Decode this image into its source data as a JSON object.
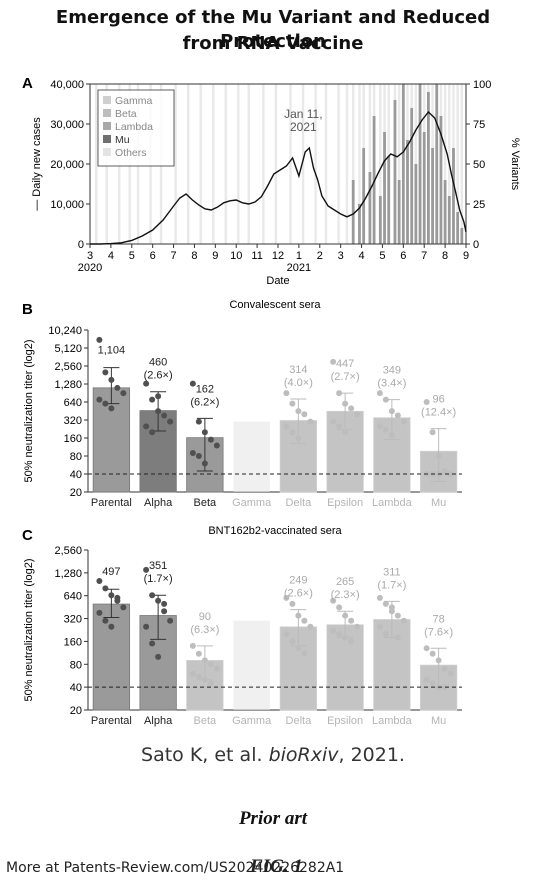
{
  "header": {
    "title_line1": "Emergence of the Mu Variant and Reduced Protection",
    "title_line2": "from RNA Vaccine"
  },
  "colors": {
    "line": "#111111",
    "bar_dark": "#7d7d7d",
    "bar_mid": "#9a9a9a",
    "bar_light": "#c4c4c4",
    "bar_faint": "#e6e6e6",
    "dot_dark": "#505050",
    "band": "#8c8c8c",
    "band_light": "#d7d7d7"
  },
  "chart_data": [
    {
      "panel_label": "A",
      "type": "line",
      "xlabel": "Date",
      "ylabel_left": "— Daily new cases",
      "ylabel_right": "% Variants",
      "yticks_left": [
        "0",
        "10,000",
        "20,000",
        "30,000",
        "40,000"
      ],
      "yticks_right": [
        "0",
        "25",
        "50",
        "75",
        "100"
      ],
      "ylim": [
        0,
        40000
      ],
      "ylim_right": [
        0,
        100
      ],
      "xticks": [
        "3",
        "4",
        "5",
        "6",
        "7",
        "8",
        "9",
        "10",
        "11",
        "12",
        "1",
        "2",
        "3",
        "4",
        "5",
        "6",
        "7",
        "8",
        "9"
      ],
      "year_labels": [
        {
          "label": "2020",
          "at_tick": 0
        },
        {
          "label": "2021",
          "at_tick": 10
        }
      ],
      "legend": [
        "Gamma",
        "Beta",
        "Lambda",
        "Mu",
        "Others"
      ],
      "legend_colors": [
        "#cfcfcf",
        "#bdbdbd",
        "#a8a8a8",
        "#6f6f6f",
        "#e3e3e3"
      ],
      "annotation": {
        "text_line1": "Jan 11,",
        "text_line2": "2021",
        "x": 10.5,
        "y": 24000
      },
      "series": [
        {
          "name": "Daily new cases",
          "x": [
            0,
            0.5,
            1,
            1.5,
            2,
            2.5,
            3,
            3.5,
            4,
            4.3,
            4.6,
            4.9,
            5.2,
            5.5,
            5.8,
            6.1,
            6.4,
            6.7,
            7,
            7.3,
            7.6,
            7.9,
            8.2,
            8.5,
            8.8,
            9.1,
            9.4,
            9.7,
            10,
            10.3,
            10.5,
            10.7,
            10.9,
            11.1,
            11.4,
            11.7,
            12,
            12.3,
            12.6,
            12.9,
            13.2,
            13.5,
            13.8,
            14.1,
            14.4,
            14.7,
            15,
            15.3,
            15.6,
            15.9,
            16.2,
            16.5,
            16.8,
            17.1,
            17.3,
            17.5,
            17.7,
            17.9,
            18
          ],
          "values": [
            0,
            0,
            100,
            300,
            900,
            2000,
            3500,
            6000,
            9500,
            11500,
            12500,
            11000,
            9800,
            8800,
            8500,
            9200,
            10300,
            10800,
            11000,
            10300,
            10000,
            10500,
            11800,
            14500,
            17500,
            18500,
            19500,
            21500,
            17000,
            23000,
            24000,
            19000,
            16000,
            12000,
            9500,
            8500,
            7500,
            6800,
            7500,
            9000,
            11500,
            14500,
            17800,
            20800,
            22500,
            21800,
            23000,
            25500,
            28500,
            31000,
            33000,
            31500,
            27500,
            22500,
            17500,
            13000,
            8500,
            5500,
            3000
          ]
        }
      ],
      "band_positions": [
        0.3,
        0.8,
        1.4,
        1.9,
        2.3,
        2.9,
        3.4,
        4.1,
        4.7,
        5.3,
        5.9,
        6.5,
        7.1,
        7.6,
        8.3,
        8.9,
        9.6,
        10.2,
        10.8,
        11.3,
        11.9,
        12.3,
        12.6,
        12.9,
        13.1,
        13.4,
        13.6,
        13.9,
        14.1,
        14.3,
        14.6,
        14.8,
        15.0,
        15.2,
        15.4,
        15.6,
        15.8,
        16.0,
        16.2,
        16.4,
        16.6,
        16.8,
        17.0,
        17.2,
        17.4,
        17.6,
        17.8
      ],
      "variant_share": [
        0,
        0,
        0,
        0,
        0,
        0,
        0,
        0,
        0,
        0,
        0,
        0,
        0,
        0,
        0,
        0,
        0,
        0,
        0,
        0,
        0,
        0,
        40,
        25,
        60,
        45,
        80,
        30,
        70,
        55,
        90,
        40,
        100,
        65,
        85,
        50,
        100,
        70,
        95,
        60,
        100,
        80,
        40,
        30,
        60,
        20,
        10
      ]
    },
    {
      "panel_label": "B",
      "type": "bar",
      "title": "Convalescent sera",
      "ylabel": "50% neutralization titer (log2)",
      "log_base": 2,
      "yticks": [
        "20",
        "40",
        "80",
        "160",
        "320",
        "640",
        "1,280",
        "2,560",
        "5,120",
        "10,240"
      ],
      "ylim": [
        20,
        10240
      ],
      "threshold": 40,
      "categories": [
        "Parental",
        "Alpha",
        "Beta",
        "Gamma",
        "Delta",
        "Epsilon",
        "Lambda",
        "Mu"
      ],
      "values": [
        1104,
        460,
        162,
        null,
        314,
        447,
        349,
        96
      ],
      "value_labels": [
        "1,104",
        "460",
        "162",
        "",
        "314",
        "447",
        "349",
        "96"
      ],
      "fold_labels": [
        "",
        "(2.6×)",
        "(6.2×)",
        "",
        "(4.0×)",
        "(2.7×)",
        "(3.4×)",
        "(12.4×)"
      ],
      "error_low": [
        600,
        210,
        45,
        null,
        130,
        220,
        150,
        30
      ],
      "error_high": [
        2400,
        950,
        340,
        null,
        720,
        900,
        700,
        230
      ],
      "shades": [
        "mid",
        "dark",
        "mid",
        "faint",
        "light",
        "light",
        "light",
        "light"
      ],
      "points": [
        [
          7000,
          2000,
          1500,
          1100,
          900,
          700,
          600,
          500
        ],
        [
          1300,
          700,
          450,
          380,
          300,
          250,
          200,
          800
        ],
        [
          1300,
          300,
          200,
          150,
          120,
          90,
          80,
          60
        ],
        [],
        [
          900,
          600,
          450,
          400,
          300,
          250,
          200,
          160
        ],
        [
          3000,
          900,
          600,
          500,
          400,
          300,
          250,
          200
        ],
        [
          900,
          700,
          450,
          380,
          300,
          250,
          220,
          180
        ],
        [
          640,
          200,
          80,
          45,
          40,
          40,
          40,
          40
        ]
      ]
    },
    {
      "panel_label": "C",
      "type": "bar",
      "title": "BNT162b2-vaccinated sera",
      "ylabel": "50% neutralization titer (log2)",
      "log_base": 2,
      "yticks": [
        "20",
        "40",
        "80",
        "160",
        "320",
        "640",
        "1,280",
        "2,560"
      ],
      "ylim": [
        20,
        2560
      ],
      "threshold": 40,
      "categories": [
        "Parental",
        "Alpha",
        "Beta",
        "Gamma",
        "Delta",
        "Epsilon",
        "Lambda",
        "Mu"
      ],
      "values": [
        497,
        351,
        90,
        null,
        249,
        265,
        311,
        78
      ],
      "value_labels": [
        "497",
        "351",
        "90",
        "",
        "249",
        "265",
        "311",
        "78"
      ],
      "fold_labels": [
        "",
        "(1.7×)",
        "(6.3×)",
        "",
        "(2.6×)",
        "(2.3×)",
        "(1.7×)",
        "(7.6×)"
      ],
      "error_low": [
        330,
        170,
        50,
        null,
        140,
        180,
        180,
        40
      ],
      "error_high": [
        780,
        650,
        140,
        null,
        420,
        400,
        540,
        130
      ],
      "shades": [
        "mid",
        "mid",
        "light",
        "faint",
        "light",
        "light",
        "light",
        "light"
      ],
      "points": [
        [
          1000,
          800,
          650,
          550,
          450,
          380,
          300,
          250,
          600
        ],
        [
          1400,
          650,
          550,
          400,
          300,
          250,
          150,
          100,
          500
        ],
        [
          140,
          110,
          90,
          80,
          70,
          60,
          55,
          50,
          45
        ],
        [],
        [
          600,
          500,
          350,
          300,
          250,
          200,
          160,
          130,
          110
        ],
        [
          550,
          450,
          350,
          300,
          250,
          220,
          200,
          180,
          160
        ],
        [
          600,
          500,
          400,
          350,
          300,
          250,
          200,
          450,
          180
        ],
        [
          130,
          110,
          90,
          70,
          60,
          50,
          45,
          40,
          40
        ]
      ]
    }
  ],
  "citation": {
    "authors": "Sato K, et al. ",
    "journal": "bioRxiv",
    "year": ", 2021."
  },
  "prior_art": "Prior art",
  "figure_label": "FIG. 1",
  "footer": "More at Patents-Review.com/US20240226282A1"
}
